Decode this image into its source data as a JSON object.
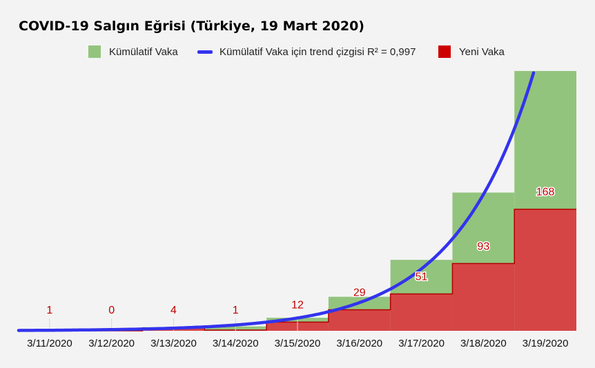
{
  "chart_data": {
    "type": "area",
    "title": "COVID-19 Salgın Eğrisi (Türkiye, 19 Mart 2020)",
    "categories": [
      "3/11/2020",
      "3/12/2020",
      "3/13/2020",
      "3/14/2020",
      "3/15/2020",
      "3/16/2020",
      "3/17/2020",
      "3/18/2020",
      "3/19/2020"
    ],
    "series": [
      {
        "name": "Kümülatif Vaka",
        "values": [
          1,
          1,
          5,
          6,
          18,
          47,
          98,
          191,
          359
        ],
        "color": "#93c47d"
      },
      {
        "name": "Kümülatif Vaka için trend çizgisi R² = 0,997",
        "kind": "trendline",
        "color": "#3333ee"
      },
      {
        "name": "Yeni Vaka",
        "values": [
          1,
          0,
          4,
          1,
          12,
          29,
          51,
          93,
          168
        ],
        "color": "#d64545"
      }
    ],
    "data_labels": [
      "1",
      "0",
      "4",
      "1",
      "12",
      "29",
      "51",
      "93",
      "168"
    ],
    "ylim": [
      0,
      360
    ],
    "legend_position": "top",
    "grid": false
  }
}
